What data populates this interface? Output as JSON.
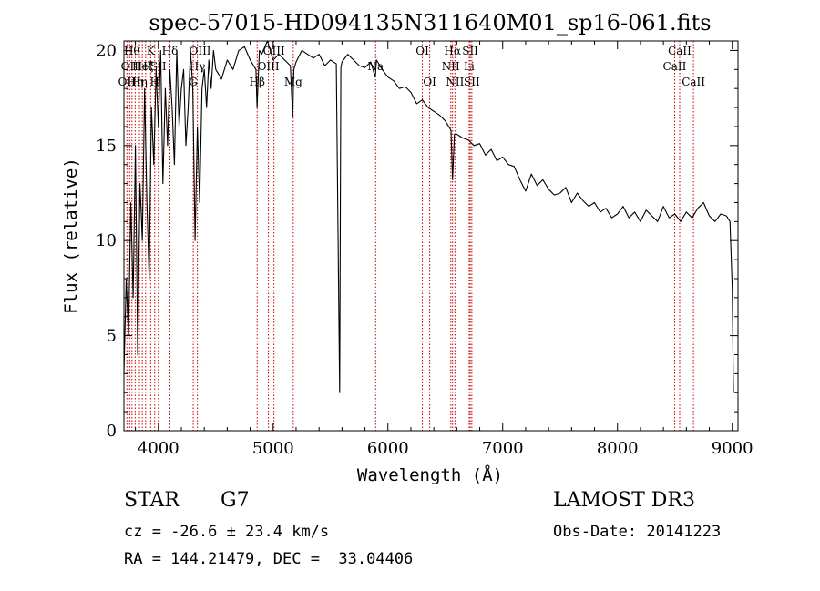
{
  "chart_data": {
    "type": "line",
    "title": "spec-57015-HD094135N311640M01_sp16-061.fits",
    "xlabel": "Wavelength (Å)",
    "ylabel": "Flux (relative)",
    "xlim": [
      3700,
      9050
    ],
    "ylim": [
      0,
      20.5
    ],
    "xticks": [
      4000,
      5000,
      6000,
      7000,
      8000,
      9000
    ],
    "yticks": [
      0,
      5,
      10,
      15,
      20
    ],
    "grid": false,
    "line_color": "#000000",
    "marker_color": "#cc0000",
    "series": [
      {
        "x": [
          3700,
          3720,
          3740,
          3760,
          3780,
          3800,
          3820,
          3840,
          3860,
          3880,
          3900,
          3920,
          3940,
          3960,
          3980,
          4000,
          4020,
          4040,
          4060,
          4080,
          4100,
          4120,
          4140,
          4160,
          4180,
          4200,
          4220,
          4240,
          4260,
          4280,
          4300,
          4320,
          4340,
          4360,
          4380,
          4400,
          4420,
          4440,
          4460,
          4480,
          4500,
          4550,
          4600,
          4650,
          4700,
          4750,
          4800,
          4850,
          4860,
          4880,
          4900,
          4950,
          5000,
          5050,
          5100,
          5150,
          5170,
          5180,
          5200,
          5250,
          5300,
          5350,
          5400,
          5450,
          5500,
          5550,
          5580,
          5590,
          5600,
          5650,
          5700,
          5750,
          5800,
          5850,
          5890,
          5900,
          5950,
          6000,
          6050,
          6100,
          6150,
          6200,
          6250,
          6300,
          6350,
          6400,
          6450,
          6500,
          6550,
          6563,
          6580,
          6600,
          6650,
          6700,
          6750,
          6800,
          6850,
          6900,
          6950,
          7000,
          7050,
          7100,
          7150,
          7200,
          7250,
          7300,
          7350,
          7400,
          7450,
          7500,
          7550,
          7600,
          7650,
          7700,
          7750,
          7800,
          7850,
          7900,
          7950,
          8000,
          8050,
          8100,
          8150,
          8200,
          8250,
          8300,
          8350,
          8400,
          8450,
          8500,
          8550,
          8600,
          8650,
          8700,
          8750,
          8800,
          8850,
          8900,
          8950,
          8980,
          9000,
          9010
        ],
        "y": [
          3,
          8,
          5,
          12,
          7,
          15,
          4,
          13,
          10,
          18,
          12,
          8,
          17,
          14,
          19,
          16,
          20,
          13,
          18,
          15,
          19,
          17,
          14,
          20,
          16,
          18,
          19,
          15,
          17,
          20,
          18,
          10,
          16,
          12,
          18,
          19,
          17,
          19.5,
          18,
          20,
          19,
          18.5,
          19.5,
          19,
          20,
          20.2,
          19.5,
          19,
          17,
          20,
          19.8,
          20.5,
          19.5,
          19.8,
          19.5,
          19.2,
          16.5,
          19,
          19.4,
          20,
          19.8,
          19.6,
          19.8,
          19.2,
          19.5,
          19.3,
          2,
          19.1,
          19.4,
          19.8,
          19.5,
          19.2,
          19.1,
          19.4,
          18.6,
          19.5,
          19.0,
          18.6,
          18.4,
          18.0,
          18.1,
          17.8,
          17.2,
          17.4,
          17.0,
          16.8,
          16.6,
          16.3,
          15.8,
          13.2,
          15.6,
          15.6,
          15.4,
          15.3,
          15.0,
          15.1,
          14.5,
          14.8,
          14.2,
          14.4,
          14.0,
          13.9,
          13.2,
          12.6,
          13.5,
          12.9,
          13.2,
          12.7,
          12.4,
          12.5,
          12.8,
          12.0,
          12.5,
          12.1,
          11.8,
          12.0,
          11.5,
          11.7,
          11.2,
          11.4,
          11.8,
          11.2,
          11.5,
          11.0,
          11.6,
          11.3,
          11.0,
          11.8,
          11.2,
          11.4,
          11.0,
          11.5,
          11.2,
          11.7,
          12.0,
          11.3,
          11.0,
          11.4,
          11.3,
          11.0,
          7.5,
          2
        ]
      }
    ],
    "spectral_lines": [
      {
        "x": 3726,
        "label": "OII",
        "row": 2
      },
      {
        "x": 3750,
        "label": "OII",
        "row": 1
      },
      {
        "x": 3770,
        "label": "Hθ",
        "row": 0
      },
      {
        "x": 3798,
        "label": "Hη",
        "row": 2
      },
      {
        "x": 3835,
        "label": "Hη",
        "row": 2
      },
      {
        "x": 3860,
        "label": "HeI",
        "row": 1
      },
      {
        "x": 3889,
        "label": "Hζ",
        "row": 1
      },
      {
        "x": 3933,
        "label": "K",
        "row": 0
      },
      {
        "x": 3968,
        "label": "H",
        "row": 2
      },
      {
        "x": 4000,
        "label": "SII",
        "row": 1
      },
      {
        "x": 4101,
        "label": "Hδ",
        "row": 0
      },
      {
        "x": 4304,
        "label": "G",
        "row": 2
      },
      {
        "x": 4340,
        "label": "Hγ",
        "row": 1
      },
      {
        "x": 4363,
        "label": "OIII",
        "row": 0
      },
      {
        "x": 4861,
        "label": "Hβ",
        "row": 2
      },
      {
        "x": 4959,
        "label": "OIII",
        "row": 1
      },
      {
        "x": 5007,
        "label": "OIII",
        "row": 0
      },
      {
        "x": 5175,
        "label": "Mg",
        "row": 2
      },
      {
        "x": 5893,
        "label": "Na",
        "row": 1
      },
      {
        "x": 6300,
        "label": "OI",
        "row": 0
      },
      {
        "x": 6364,
        "label": "OI",
        "row": 2
      },
      {
        "x": 6548,
        "label": "NII",
        "row": 1
      },
      {
        "x": 6563,
        "label": "Hα",
        "row": 0
      },
      {
        "x": 6584,
        "label": "NII",
        "row": 2
      },
      {
        "x": 6708,
        "label": "Li",
        "row": 1
      },
      {
        "x": 6717,
        "label": "SII",
        "row": 0
      },
      {
        "x": 6731,
        "label": "SII",
        "row": 2
      },
      {
        "x": 8498,
        "label": "CaII",
        "row": 1
      },
      {
        "x": 8542,
        "label": "CaII",
        "row": 0
      },
      {
        "x": 8662,
        "label": "CaII",
        "row": 2
      }
    ]
  },
  "info": {
    "object_class": "STAR",
    "subclass": "G7",
    "survey": "LAMOST DR3",
    "redshift": "cz = -26.6 ± 23.4 km/s",
    "obs_date": "Obs-Date: 20141223",
    "coords": "RA = 144.21479, DEC =  33.04406"
  }
}
